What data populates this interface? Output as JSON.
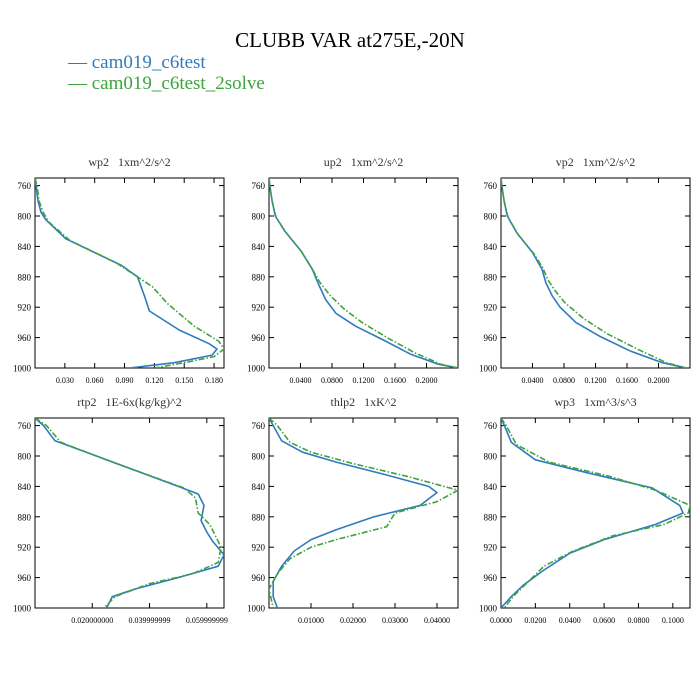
{
  "title": "CLUBB VAR at275E,-20N",
  "legend": [
    {
      "label": "cam019_c6test",
      "color": "#2f7bbf",
      "dash": "solid"
    },
    {
      "label": "cam019_c6test_2solve",
      "color": "#3ea33e",
      "dash": "dashed"
    }
  ],
  "y_ticks": [
    760,
    800,
    840,
    880,
    920,
    960,
    1000
  ],
  "ylim": [
    1000,
    750
  ],
  "chart_data": [
    {
      "type": "line",
      "title": "wp2   1xm^2/s^2",
      "xlim": [
        0.0,
        0.19
      ],
      "x_ticks": [
        0.03,
        0.06,
        0.09,
        0.12,
        0.15,
        0.18
      ],
      "x_tick_labels": [
        "0.030",
        "0.060",
        "0.090",
        "0.120",
        "0.150",
        "0.180"
      ],
      "series": [
        {
          "name": "cam019_c6test",
          "points": [
            [
              0.0,
              750
            ],
            [
              0.001,
              760
            ],
            [
              0.003,
              780
            ],
            [
              0.006,
              795
            ],
            [
              0.011,
              805
            ],
            [
              0.031,
              830
            ],
            [
              0.087,
              865
            ],
            [
              0.103,
              880
            ],
            [
              0.11,
              905
            ],
            [
              0.115,
              925
            ],
            [
              0.145,
              950
            ],
            [
              0.175,
              968
            ],
            [
              0.183,
              975
            ],
            [
              0.178,
              983
            ],
            [
              0.14,
              993
            ],
            [
              0.095,
              1000
            ]
          ]
        },
        {
          "name": "cam019_c6test_2solve",
          "points": [
            [
              0.0,
              750
            ],
            [
              0.002,
              760
            ],
            [
              0.004,
              780
            ],
            [
              0.008,
              795
            ],
            [
              0.014,
              808
            ],
            [
              0.035,
              832
            ],
            [
              0.082,
              862
            ],
            [
              0.103,
              880
            ],
            [
              0.118,
              893
            ],
            [
              0.133,
              915
            ],
            [
              0.16,
              945
            ],
            [
              0.185,
              965
            ],
            [
              0.19,
              975
            ],
            [
              0.18,
              985
            ],
            [
              0.15,
              993
            ],
            [
              0.12,
              1000
            ]
          ]
        }
      ]
    },
    {
      "type": "line",
      "title": "up2   1xm^2/s^2",
      "xlim": [
        0.0,
        0.24
      ],
      "x_ticks": [
        0.04,
        0.08,
        0.12,
        0.16,
        0.2
      ],
      "x_tick_labels": [
        "0.0400",
        "0.0800",
        "0.1200",
        "0.1600",
        "0.2000"
      ],
      "series": [
        {
          "name": "cam019_c6test",
          "points": [
            [
              0.0,
              750
            ],
            [
              0.001,
              760
            ],
            [
              0.004,
              780
            ],
            [
              0.008,
              800
            ],
            [
              0.02,
              820
            ],
            [
              0.04,
              845
            ],
            [
              0.055,
              870
            ],
            [
              0.063,
              890
            ],
            [
              0.072,
              910
            ],
            [
              0.085,
              928
            ],
            [
              0.11,
              945
            ],
            [
              0.145,
              963
            ],
            [
              0.18,
              982
            ],
            [
              0.215,
              995
            ],
            [
              0.24,
              1000
            ]
          ]
        },
        {
          "name": "cam019_c6test_2solve",
          "points": [
            [
              0.0,
              750
            ],
            [
              0.001,
              760
            ],
            [
              0.004,
              780
            ],
            [
              0.009,
              802
            ],
            [
              0.022,
              822
            ],
            [
              0.042,
              848
            ],
            [
              0.055,
              870
            ],
            [
              0.065,
              888
            ],
            [
              0.078,
              905
            ],
            [
              0.095,
              922
            ],
            [
              0.118,
              940
            ],
            [
              0.15,
              960
            ],
            [
              0.185,
              980
            ],
            [
              0.218,
              995
            ],
            [
              0.24,
              1000
            ]
          ]
        }
      ]
    },
    {
      "type": "line",
      "title": "vp2   1xm^2/s^2",
      "xlim": [
        0.0,
        0.24
      ],
      "x_ticks": [
        0.04,
        0.08,
        0.12,
        0.16,
        0.2
      ],
      "x_tick_labels": [
        "0.0400",
        "0.0800",
        "0.1200",
        "0.1600",
        "0.2000"
      ],
      "series": [
        {
          "name": "cam019_c6test",
          "points": [
            [
              0.0,
              750
            ],
            [
              0.001,
              760
            ],
            [
              0.004,
              780
            ],
            [
              0.008,
              800
            ],
            [
              0.02,
              822
            ],
            [
              0.04,
              848
            ],
            [
              0.052,
              870
            ],
            [
              0.057,
              888
            ],
            [
              0.065,
              905
            ],
            [
              0.075,
              920
            ],
            [
              0.095,
              940
            ],
            [
              0.125,
              958
            ],
            [
              0.165,
              978
            ],
            [
              0.205,
              993
            ],
            [
              0.235,
              1000
            ]
          ]
        },
        {
          "name": "cam019_c6test_2solve",
          "points": [
            [
              0.0,
              750
            ],
            [
              0.001,
              760
            ],
            [
              0.004,
              780
            ],
            [
              0.009,
              802
            ],
            [
              0.022,
              825
            ],
            [
              0.042,
              850
            ],
            [
              0.053,
              868
            ],
            [
              0.06,
              885
            ],
            [
              0.07,
              900
            ],
            [
              0.082,
              915
            ],
            [
              0.105,
              935
            ],
            [
              0.135,
              955
            ],
            [
              0.175,
              976
            ],
            [
              0.21,
              993
            ],
            [
              0.235,
              1000
            ]
          ]
        }
      ]
    },
    {
      "type": "line",
      "title": "rtp2   1E-6x(kg/kg)^2",
      "xlim": [
        0.0,
        0.066
      ],
      "x_ticks": [
        0.02,
        0.04,
        0.06
      ],
      "x_tick_labels": [
        "0.020000000",
        "0.039999999",
        "0.059999999"
      ],
      "series": [
        {
          "name": "cam019_c6test",
          "points": [
            [
              0.0,
              750
            ],
            [
              0.003,
              760
            ],
            [
              0.007,
              780
            ],
            [
              0.025,
              805
            ],
            [
              0.05,
              840
            ],
            [
              0.057,
              850
            ],
            [
              0.059,
              865
            ],
            [
              0.058,
              885
            ],
            [
              0.06,
              900
            ],
            [
              0.062,
              912
            ],
            [
              0.066,
              930
            ],
            [
              0.064,
              945
            ],
            [
              0.05,
              960
            ],
            [
              0.035,
              975
            ],
            [
              0.027,
              985
            ],
            [
              0.025,
              1000
            ]
          ]
        },
        {
          "name": "cam019_c6test_2solve",
          "points": [
            [
              0.0,
              750
            ],
            [
              0.004,
              760
            ],
            [
              0.009,
              782
            ],
            [
              0.027,
              808
            ],
            [
              0.052,
              842
            ],
            [
              0.056,
              855
            ],
            [
              0.057,
              875
            ],
            [
              0.061,
              890
            ],
            [
              0.063,
              905
            ],
            [
              0.065,
              920
            ],
            [
              0.064,
              940
            ],
            [
              0.055,
              955
            ],
            [
              0.04,
              968
            ],
            [
              0.028,
              985
            ],
            [
              0.024,
              1000
            ]
          ]
        }
      ]
    },
    {
      "type": "line",
      "title": "thlp2   1xK^2",
      "xlim": [
        0.0,
        0.045
      ],
      "x_ticks": [
        0.01,
        0.02,
        0.03,
        0.04
      ],
      "x_tick_labels": [
        "0.01000",
        "0.02000",
        "0.03000",
        "0.04000"
      ],
      "series": [
        {
          "name": "cam019_c6test",
          "points": [
            [
              0.0,
              750
            ],
            [
              0.001,
              760
            ],
            [
              0.003,
              780
            ],
            [
              0.008,
              795
            ],
            [
              0.016,
              808
            ],
            [
              0.028,
              825
            ],
            [
              0.038,
              840
            ],
            [
              0.04,
              848
            ],
            [
              0.036,
              865
            ],
            [
              0.025,
              880
            ],
            [
              0.016,
              897
            ],
            [
              0.01,
              910
            ],
            [
              0.006,
              925
            ],
            [
              0.003,
              945
            ],
            [
              0.001,
              965
            ],
            [
              0.001,
              985
            ],
            [
              0.002,
              1000
            ]
          ]
        },
        {
          "name": "cam019_c6test_2solve",
          "points": [
            [
              0.0,
              750
            ],
            [
              0.002,
              760
            ],
            [
              0.005,
              782
            ],
            [
              0.01,
              795
            ],
            [
              0.02,
              810
            ],
            [
              0.033,
              827
            ],
            [
              0.045,
              845
            ],
            [
              0.04,
              860
            ],
            [
              0.03,
              875
            ],
            [
              0.028,
              893
            ],
            [
              0.016,
              910
            ],
            [
              0.01,
              920
            ],
            [
              0.005,
              935
            ],
            [
              0.002,
              955
            ],
            [
              0.0,
              975
            ],
            [
              0.001,
              1000
            ]
          ]
        }
      ]
    },
    {
      "type": "line",
      "title": "wp3   1xm^3/s^3",
      "xlim": [
        0.0,
        0.11
      ],
      "x_ticks": [
        0.0,
        0.02,
        0.04,
        0.06,
        0.08,
        0.1
      ],
      "x_tick_labels": [
        "0.0000",
        "0.0200",
        "0.0400",
        "0.0600",
        "0.0800",
        "0.1000"
      ],
      "series": [
        {
          "name": "cam019_c6test",
          "points": [
            [
              0.0,
              750
            ],
            [
              0.002,
              760
            ],
            [
              0.006,
              782
            ],
            [
              0.02,
              805
            ],
            [
              0.05,
              822
            ],
            [
              0.088,
              842
            ],
            [
              0.104,
              865
            ],
            [
              0.106,
              875
            ],
            [
              0.09,
              890
            ],
            [
              0.06,
              910
            ],
            [
              0.04,
              928
            ],
            [
              0.025,
              950
            ],
            [
              0.013,
              970
            ],
            [
              0.006,
              985
            ],
            [
              0.0,
              1000
            ]
          ]
        },
        {
          "name": "cam019_c6test_2solve",
          "points": [
            [
              0.0,
              750
            ],
            [
              0.003,
              760
            ],
            [
              0.009,
              785
            ],
            [
              0.028,
              808
            ],
            [
              0.062,
              826
            ],
            [
              0.09,
              845
            ],
            [
              0.11,
              865
            ],
            [
              0.109,
              875
            ],
            [
              0.095,
              890
            ],
            [
              0.065,
              905
            ],
            [
              0.042,
              925
            ],
            [
              0.025,
              945
            ],
            [
              0.016,
              965
            ],
            [
              0.007,
              985
            ],
            [
              0.002,
              1000
            ]
          ]
        }
      ]
    }
  ]
}
